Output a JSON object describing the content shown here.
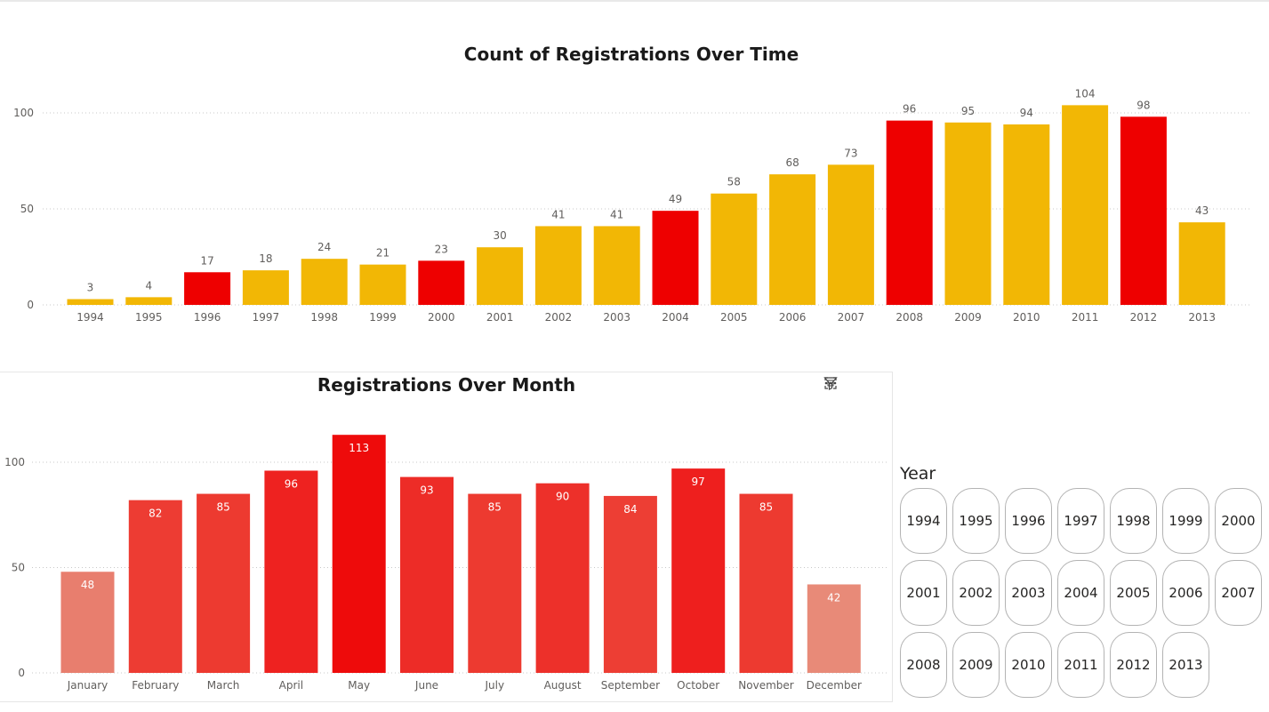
{
  "chart_data": [
    {
      "type": "bar",
      "title": "Count of Registrations Over Time",
      "categories": [
        "1994",
        "1995",
        "1996",
        "1997",
        "1998",
        "1999",
        "2000",
        "2001",
        "2002",
        "2003",
        "2004",
        "2005",
        "2006",
        "2007",
        "2008",
        "2009",
        "2010",
        "2011",
        "2012",
        "2013"
      ],
      "values": [
        3,
        4,
        17,
        18,
        24,
        21,
        23,
        30,
        41,
        41,
        49,
        58,
        68,
        73,
        96,
        95,
        94,
        104,
        98,
        43
      ],
      "colors": [
        "#f2b705",
        "#f2b705",
        "#ee0000",
        "#f2b705",
        "#f2b705",
        "#f2b705",
        "#ee0000",
        "#f2b705",
        "#f2b705",
        "#f2b705",
        "#ee0000",
        "#f2b705",
        "#f2b705",
        "#f2b705",
        "#ee0000",
        "#f2b705",
        "#f2b705",
        "#f2b705",
        "#ee0000",
        "#f2b705"
      ],
      "yticks": [
        0,
        50,
        100
      ],
      "ylim": [
        0,
        100
      ],
      "grid": true,
      "data_labels": "outside"
    },
    {
      "type": "bar",
      "title": "Registrations Over Month",
      "categories": [
        "January",
        "February",
        "March",
        "April",
        "May",
        "June",
        "July",
        "August",
        "September",
        "October",
        "November",
        "December"
      ],
      "values": [
        48,
        82,
        85,
        96,
        113,
        93,
        85,
        90,
        84,
        97,
        85,
        42
      ],
      "colors": [
        "#e87e6e",
        "#ed3c33",
        "#ed3a30",
        "#ee2220",
        "#ee0b0b",
        "#ed2c27",
        "#ed3a30",
        "#ed302a",
        "#ed3e34",
        "#ee1f1e",
        "#ed3a30",
        "#e88a78"
      ],
      "yticks": [
        0,
        50,
        100
      ],
      "ylim": [
        0,
        100
      ],
      "grid": true,
      "data_labels": "inside"
    }
  ],
  "header_icons": [
    "filter-icon",
    "focus-mode-icon",
    "more-options-icon"
  ],
  "slicer": {
    "title": "Year",
    "items": [
      "1994",
      "1995",
      "1996",
      "1997",
      "1998",
      "1999",
      "2000",
      "2001",
      "2002",
      "2003",
      "2004",
      "2005",
      "2006",
      "2007",
      "2008",
      "2009",
      "2010",
      "2011",
      "2012",
      "2013"
    ]
  }
}
